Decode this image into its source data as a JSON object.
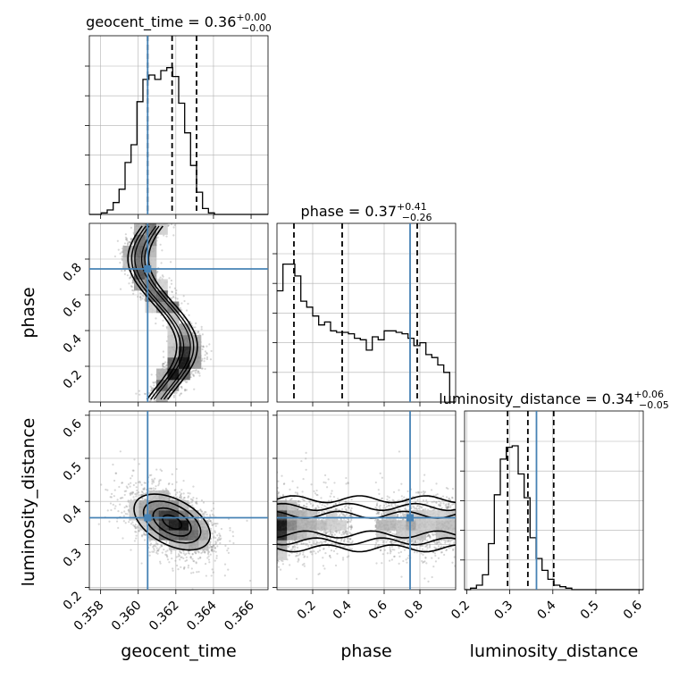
{
  "chart_data": {
    "type": "corner",
    "parameters": [
      "geocent_time",
      "phase",
      "luminosity_distance"
    ],
    "axis_labels": {
      "geocent_time": "geocent_time",
      "phase": "phase",
      "luminosity_distance": "luminosity_distance"
    },
    "ranges": {
      "geocent_time": [
        0.3574,
        0.3669
      ],
      "phase": [
        0.0,
        1.0
      ],
      "luminosity_distance": [
        0.195,
        0.61
      ]
    },
    "ticks": {
      "geocent_time": [
        "0.358",
        "0.360",
        "0.362",
        "0.364",
        "0.366"
      ],
      "phase_x": [
        "0.2",
        "0.4",
        "0.6",
        "0.8"
      ],
      "phase_y": [
        "0.2",
        "0.4",
        "0.6",
        "0.8"
      ],
      "luminosity_distance_x": [
        "0.2",
        "0.3",
        "0.4",
        "0.5",
        "0.6"
      ],
      "luminosity_distance_y": [
        "0.2",
        "0.3",
        "0.4",
        "0.5",
        "0.6"
      ]
    },
    "titles": [
      {
        "param": "geocent_time",
        "prefix": "geocent_time = 0.36",
        "sup": "+0.00",
        "sub": "−0.00"
      },
      {
        "param": "phase",
        "prefix": "phase = 0.37",
        "sup": "+0.41",
        "sub": "−0.26"
      },
      {
        "param": "luminosity_distance",
        "prefix": "luminosity_distance = 0.34",
        "sup": "+0.06",
        "sub": "−0.05"
      }
    ],
    "truths": {
      "geocent_time": 0.3605,
      "phase": 0.745,
      "luminosity_distance": 0.362
    },
    "quantiles": {
      "geocent_time": [
        0.3605,
        0.3618,
        0.3631
      ],
      "phase": [
        0.095,
        0.365,
        0.785
      ],
      "luminosity_distance": [
        0.295,
        0.342,
        0.402
      ]
    },
    "histograms": {
      "geocent_time": {
        "edges_range": [
          0.3574,
          0.3669
        ],
        "counts": [
          0.0,
          0.0,
          0.01,
          0.03,
          0.08,
          0.17,
          0.35,
          0.47,
          0.76,
          0.91,
          0.94,
          0.91,
          0.97,
          0.99,
          0.93,
          0.75,
          0.55,
          0.33,
          0.15,
          0.04,
          0.01,
          0.0,
          0.0,
          0.0,
          0.0,
          0.0,
          0.0,
          0.0,
          0.0,
          0.0
        ]
      },
      "phase": {
        "edges_range": [
          0.0,
          1.0
        ],
        "counts": [
          0.75,
          0.93,
          0.93,
          0.85,
          0.68,
          0.64,
          0.58,
          0.52,
          0.54,
          0.48,
          0.47,
          0.47,
          0.46,
          0.43,
          0.42,
          0.35,
          0.44,
          0.42,
          0.48,
          0.48,
          0.47,
          0.46,
          0.43,
          0.38,
          0.4,
          0.32,
          0.3,
          0.25,
          0.2,
          0.0
        ]
      },
      "luminosity_distance": {
        "edges_range": [
          0.195,
          0.61
        ],
        "counts": [
          0.0,
          0.01,
          0.03,
          0.1,
          0.31,
          0.64,
          0.88,
          0.96,
          0.97,
          0.78,
          0.62,
          0.35,
          0.21,
          0.13,
          0.07,
          0.03,
          0.02,
          0.01,
          0.0,
          0.0,
          0.0,
          0.0,
          0.0,
          0.0,
          0.0,
          0.0,
          0.0,
          0.0,
          0.0,
          0.0
        ]
      }
    },
    "pair_models": {
      "phase_vs_geocent_time": {
        "type": "S-curve",
        "x": "geocent_time",
        "y": "phase"
      },
      "luminosity_distance_vs_geocent_time": {
        "type": "blob",
        "center": [
          0.3618,
          0.352
        ],
        "sd": [
          0.0011,
          0.033
        ],
        "corr": -0.5
      },
      "luminosity_distance_vs_phase": {
        "type": "band",
        "center_y": 0.345,
        "sd_y": 0.03
      }
    },
    "colors": {
      "truth": "#4682b4",
      "hist": "#000000",
      "scatter": "#8c8c8c",
      "grid": "#b0b0b0"
    },
    "grid": true
  }
}
